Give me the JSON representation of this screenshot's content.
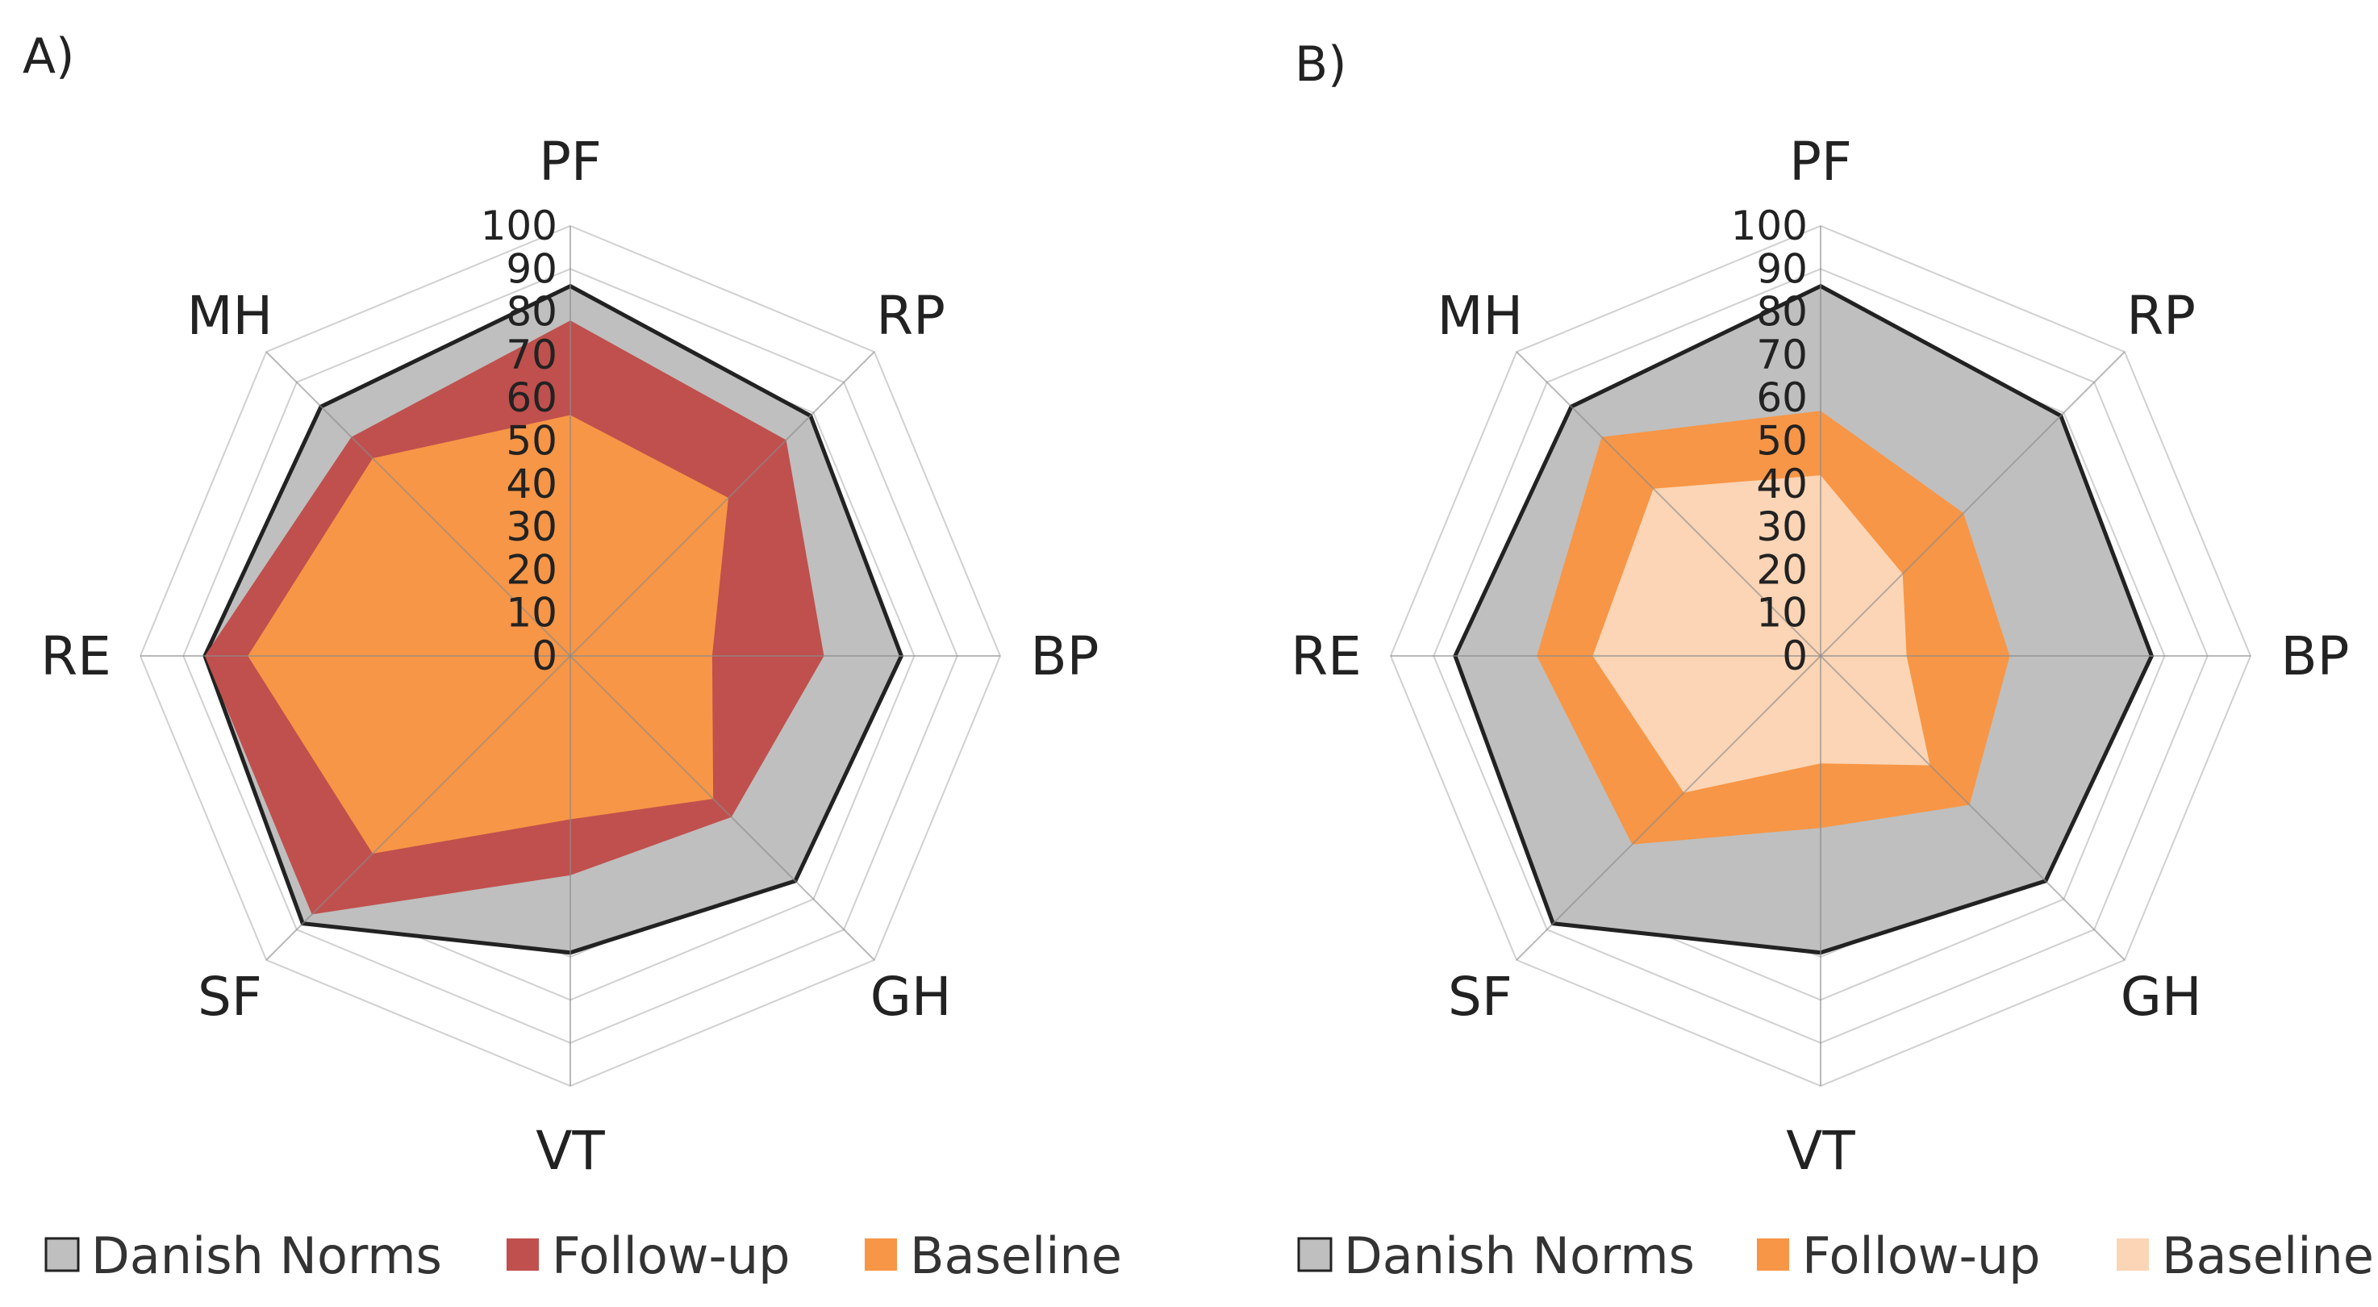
{
  "chart_data": [
    {
      "type": "radar",
      "panel_label": "A)",
      "axes": [
        "PF",
        "RP",
        "BP",
        "GH",
        "VT",
        "SF",
        "RE",
        "MH"
      ],
      "ticks": [
        "0",
        "10",
        "20",
        "30",
        "40",
        "50",
        "60",
        "70",
        "80",
        "90",
        "100"
      ],
      "range": [
        0,
        100
      ],
      "grid": true,
      "legend_position": "bottom",
      "series": [
        {
          "name": "Danish Norms",
          "color": "#bfbfbf",
          "outline": "#222222",
          "values": [
            86,
            79,
            77,
            74,
            69,
            88,
            85,
            82
          ]
        },
        {
          "name": "Follow-up",
          "color": "#c0504d",
          "outline": null,
          "values": [
            78,
            71,
            59,
            53,
            51,
            85,
            85,
            72
          ]
        },
        {
          "name": "Baseline",
          "color": "#f79646",
          "outline": null,
          "values": [
            56,
            52,
            33,
            47,
            38,
            65,
            75,
            65
          ]
        }
      ]
    },
    {
      "type": "radar",
      "panel_label": "B)",
      "axes": [
        "PF",
        "RP",
        "BP",
        "GH",
        "VT",
        "SF",
        "RE",
        "MH"
      ],
      "ticks": [
        "0",
        "10",
        "20",
        "30",
        "40",
        "50",
        "60",
        "70",
        "80",
        "90",
        "100"
      ],
      "range": [
        0,
        100
      ],
      "grid": true,
      "legend_position": "bottom",
      "series": [
        {
          "name": "Danish Norms",
          "color": "#bfbfbf",
          "outline": "#222222",
          "values": [
            86,
            79,
            77,
            74,
            69,
            88,
            85,
            82
          ]
        },
        {
          "name": "Follow-up",
          "color": "#f79646",
          "outline": null,
          "values": [
            57,
            47,
            44,
            49,
            40,
            62,
            66,
            72
          ]
        },
        {
          "name": "Baseline",
          "color": "#fbd5b5",
          "outline": null,
          "values": [
            42,
            27,
            20,
            36,
            25,
            45,
            53,
            55
          ]
        }
      ]
    }
  ]
}
